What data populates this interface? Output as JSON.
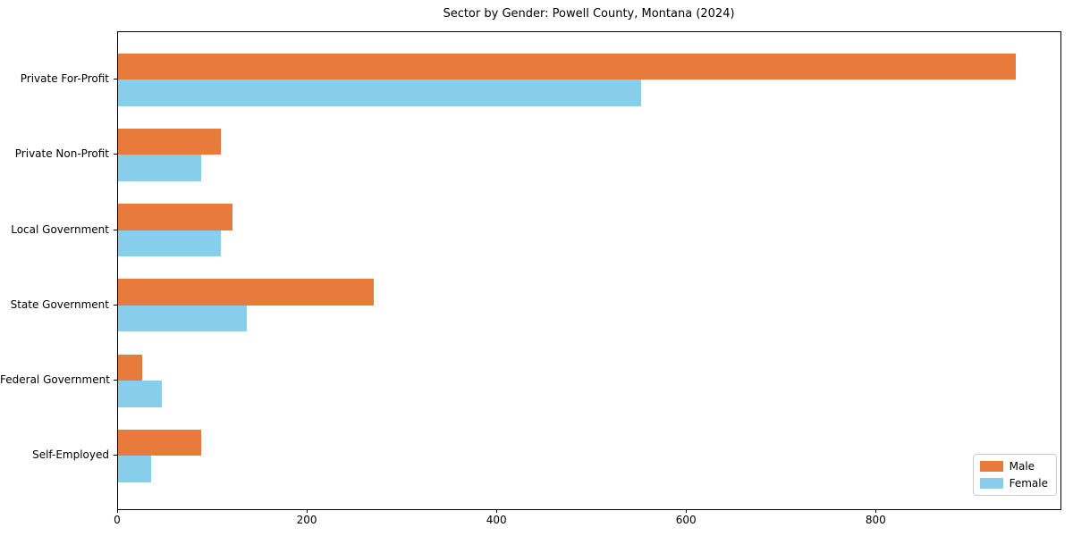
{
  "chart_data": {
    "type": "bar",
    "orientation": "horizontal",
    "title": "Sector by Gender: Powell County, Montana (2024)",
    "categories": [
      "Private For-Profit",
      "Private Non-Profit",
      "Local Government",
      "State Government",
      "Federal Government",
      "Self-Employed"
    ],
    "series": [
      {
        "name": "Male",
        "color": "#E87A3C",
        "values": [
          947,
          108,
          121,
          270,
          25,
          88
        ]
      },
      {
        "name": "Female",
        "color": "#87CEEB",
        "values": [
          552,
          88,
          108,
          136,
          46,
          35
        ]
      }
    ],
    "xlabel": "",
    "ylabel": "",
    "xlim": [
      0,
      994
    ],
    "xticks": [
      0,
      200,
      400,
      600,
      800
    ],
    "grid": false,
    "legend": {
      "position": "lower right",
      "entries": [
        "Male",
        "Female"
      ]
    }
  }
}
